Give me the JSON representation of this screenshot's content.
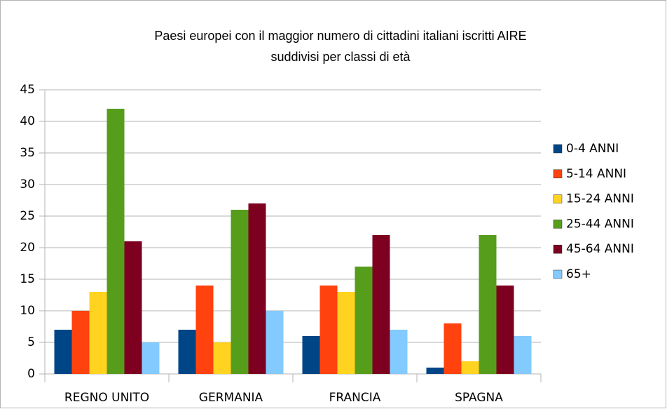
{
  "chart_data": {
    "type": "bar",
    "title": [
      "Paesi europei con il maggior numero di cittadini italiani iscritti AIRE",
      "suddivisi per classi di età"
    ],
    "categories": [
      "REGNO UNITO",
      "GERMANIA",
      "FRANCIA",
      "SPAGNA"
    ],
    "series": [
      {
        "name": "0-4 ANNI",
        "color": "#004586",
        "values": [
          7,
          7,
          6,
          1
        ]
      },
      {
        "name": "5-14 ANNI",
        "color": "#ff420e",
        "values": [
          10,
          14,
          14,
          8
        ]
      },
      {
        "name": "15-24 ANNI",
        "color": "#ffd320",
        "values": [
          13,
          5,
          13,
          2
        ]
      },
      {
        "name": "25-44 ANNI",
        "color": "#579d1c",
        "values": [
          42,
          26,
          17,
          22
        ]
      },
      {
        "name": "45-64 ANNI",
        "color": "#7e0021",
        "values": [
          21,
          27,
          22,
          14
        ]
      },
      {
        "name": "65+",
        "color": "#83caff",
        "values": [
          5,
          10,
          7,
          6
        ]
      }
    ],
    "ylim": [
      0,
      45
    ],
    "yticks": [
      0,
      5,
      10,
      15,
      20,
      25,
      30,
      35,
      40,
      45
    ],
    "grid": true,
    "legend": "right"
  }
}
